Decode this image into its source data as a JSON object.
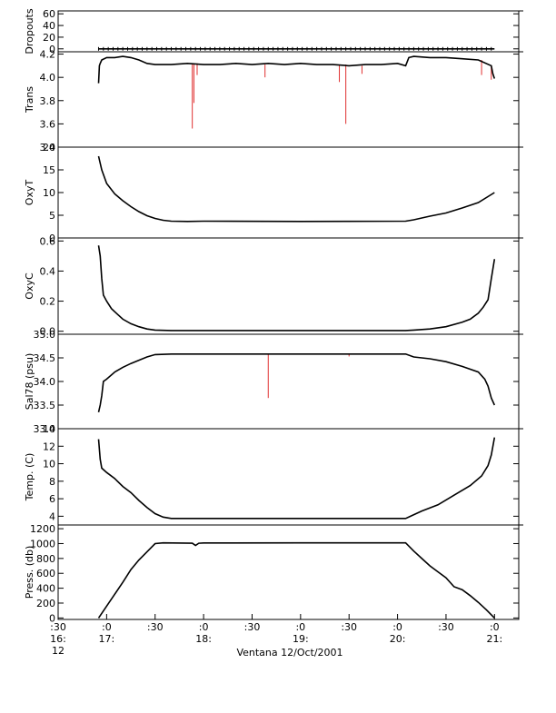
{
  "caption": "Ventana 12/Oct/2001",
  "x_axis": {
    "start_label": [
      ":30",
      "16:",
      "12"
    ],
    "ticks": [
      {
        "min": 0,
        "label1": ":0",
        "label2": "17:"
      },
      {
        "min": 30,
        "label1": ":30",
        "label2": ""
      },
      {
        "min": 60,
        "label1": ":0",
        "label2": "18:"
      },
      {
        "min": 90,
        "label1": ":30",
        "label2": ""
      },
      {
        "min": 120,
        "label1": ":0",
        "label2": "19:"
      },
      {
        "min": 150,
        "label1": ":30",
        "label2": ""
      },
      {
        "min": 180,
        "label1": ":0",
        "label2": "20:"
      },
      {
        "min": 210,
        "label1": ":30",
        "label2": ""
      },
      {
        "min": 240,
        "label1": ":0",
        "label2": "21:"
      }
    ]
  },
  "chart_data": [
    {
      "type": "line",
      "ylabel": "Dropouts",
      "ylim": [
        -5,
        65
      ],
      "yticks": [
        [
          60,
          "60"
        ],
        [
          40,
          "40"
        ],
        [
          20,
          "20"
        ],
        [
          0,
          "0"
        ]
      ],
      "series": [
        {
          "x": [
            -5,
            240
          ],
          "y": [
            0,
            0
          ]
        }
      ],
      "markers": true
    },
    {
      "type": "line",
      "ylabel": "Trans",
      "ylim": [
        3.4,
        4.22
      ],
      "yticks": [
        [
          4.2,
          "4.2"
        ],
        [
          4.0,
          "4.0"
        ],
        [
          3.8,
          "3.8"
        ],
        [
          3.6,
          "3.6"
        ],
        [
          3.4,
          "3.4"
        ]
      ],
      "series": [
        {
          "x": [
            -5,
            -4.5,
            -4,
            -3,
            0,
            5,
            10,
            15,
            20,
            25,
            30,
            40,
            50,
            60,
            70,
            80,
            90,
            100,
            110,
            120,
            130,
            140,
            150,
            160,
            170,
            180,
            185,
            187,
            190,
            200,
            210,
            220,
            230,
            238,
            239,
            240
          ],
          "y": [
            3.95,
            4.1,
            4.12,
            4.15,
            4.17,
            4.17,
            4.18,
            4.17,
            4.15,
            4.12,
            4.11,
            4.11,
            4.12,
            4.11,
            4.11,
            4.12,
            4.11,
            4.12,
            4.11,
            4.12,
            4.11,
            4.11,
            4.1,
            4.11,
            4.11,
            4.12,
            4.1,
            4.17,
            4.18,
            4.17,
            4.17,
            4.16,
            4.15,
            4.1,
            4.03,
            3.99
          ]
        }
      ],
      "spikes": [
        {
          "x": 53,
          "y": 3.56
        },
        {
          "x": 54,
          "y": 3.78
        },
        {
          "x": 56,
          "y": 4.02
        },
        {
          "x": 98,
          "y": 4.0
        },
        {
          "x": 144,
          "y": 3.96
        },
        {
          "x": 148,
          "y": 3.6
        },
        {
          "x": 158,
          "y": 4.03
        },
        {
          "x": 232,
          "y": 4.02
        },
        {
          "x": 238,
          "y": 3.98
        }
      ]
    },
    {
      "type": "line",
      "ylabel": "OxyT",
      "ylim": [
        0,
        20
      ],
      "yticks": [
        [
          20,
          "20"
        ],
        [
          15,
          "15"
        ],
        [
          10,
          "10"
        ],
        [
          5,
          "5"
        ],
        [
          0,
          "0"
        ]
      ],
      "series": [
        {
          "x": [
            -5,
            -3,
            0,
            5,
            10,
            15,
            20,
            25,
            30,
            35,
            40,
            50,
            60,
            120,
            185,
            190,
            200,
            210,
            220,
            230,
            240
          ],
          "y": [
            18,
            15,
            12,
            9.7,
            8.2,
            6.9,
            5.8,
            4.9,
            4.3,
            3.9,
            3.7,
            3.65,
            3.7,
            3.65,
            3.7,
            4.0,
            4.8,
            5.5,
            6.6,
            7.8,
            10
          ]
        }
      ]
    },
    {
      "type": "line",
      "ylabel": "OxyC",
      "ylim": [
        -0.02,
        0.62
      ],
      "yticks": [
        [
          0.6,
          "0.6"
        ],
        [
          0.4,
          "0.4"
        ],
        [
          0.2,
          "0.2"
        ],
        [
          0.0,
          "0.0"
        ]
      ],
      "series": [
        {
          "x": [
            -5,
            -4,
            -3,
            -2,
            0,
            3,
            6,
            10,
            15,
            20,
            25,
            30,
            40,
            60,
            120,
            185,
            190,
            200,
            210,
            220,
            225,
            230,
            233,
            236,
            238,
            240
          ],
          "y": [
            0.57,
            0.5,
            0.35,
            0.24,
            0.2,
            0.15,
            0.12,
            0.08,
            0.05,
            0.03,
            0.015,
            0.008,
            0.005,
            0.005,
            0.005,
            0.005,
            0.008,
            0.015,
            0.03,
            0.06,
            0.08,
            0.12,
            0.16,
            0.21,
            0.35,
            0.48
          ]
        }
      ]
    },
    {
      "type": "line",
      "ylabel": "Sal78 (psu)",
      "ylim": [
        33.0,
        35.0
      ],
      "yticks": [
        [
          35.0,
          "35.0"
        ],
        [
          34.5,
          "34.5"
        ],
        [
          34.0,
          "34.0"
        ],
        [
          33.5,
          "33.5"
        ],
        [
          33.0,
          "33.0"
        ]
      ],
      "series": [
        {
          "x": [
            -5,
            -4,
            -3,
            -2,
            0,
            5,
            10,
            15,
            20,
            25,
            30,
            40,
            60,
            120,
            185,
            190,
            200,
            210,
            220,
            230,
            234,
            236,
            238,
            240
          ],
          "y": [
            33.35,
            33.5,
            33.7,
            34.0,
            34.05,
            34.2,
            34.3,
            34.38,
            34.45,
            34.52,
            34.57,
            34.58,
            34.58,
            34.58,
            34.58,
            34.52,
            34.48,
            34.42,
            34.32,
            34.2,
            34.05,
            33.9,
            33.65,
            33.5
          ]
        }
      ],
      "spikes": [
        {
          "x": 100,
          "y": 33.65
        },
        {
          "x": 150,
          "y": 34.53
        }
      ]
    },
    {
      "type": "line",
      "ylabel": "Temp. (C)",
      "ylim": [
        3,
        14
      ],
      "yticks": [
        [
          14,
          "14"
        ],
        [
          12,
          "12"
        ],
        [
          10,
          "10"
        ],
        [
          8,
          "8"
        ],
        [
          6,
          "6"
        ],
        [
          4,
          "4"
        ]
      ],
      "series": [
        {
          "x": [
            -5,
            -4,
            -3,
            0,
            5,
            10,
            15,
            20,
            25,
            30,
            35,
            40,
            60,
            120,
            185,
            188,
            195,
            205,
            215,
            225,
            232,
            236,
            238,
            240
          ],
          "y": [
            12.8,
            10.5,
            9.5,
            9.0,
            8.3,
            7.4,
            6.7,
            5.8,
            5.0,
            4.3,
            3.9,
            3.75,
            3.75,
            3.75,
            3.75,
            4.0,
            4.6,
            5.3,
            6.4,
            7.5,
            8.6,
            9.8,
            11,
            13
          ]
        }
      ]
    },
    {
      "type": "line",
      "ylabel": "Press. (db)",
      "ylim": [
        -20,
        1250
      ],
      "yticks": [
        [
          1200,
          "1200"
        ],
        [
          1000,
          "1000"
        ],
        [
          800,
          "800"
        ],
        [
          600,
          "600"
        ],
        [
          400,
          "400"
        ],
        [
          200,
          "200"
        ],
        [
          0,
          "0"
        ]
      ],
      "series": [
        {
          "x": [
            -5,
            0,
            5,
            10,
            15,
            20,
            25,
            30,
            35,
            53,
            55,
            57,
            60,
            120,
            185,
            190,
            195,
            200,
            205,
            210,
            215,
            220,
            225,
            230,
            235,
            240
          ],
          "y": [
            0,
            160,
            320,
            480,
            650,
            780,
            890,
            1000,
            1010,
            1005,
            975,
            1005,
            1008,
            1010,
            1010,
            900,
            800,
            700,
            620,
            540,
            420,
            380,
            300,
            210,
            110,
            0
          ]
        }
      ]
    }
  ]
}
